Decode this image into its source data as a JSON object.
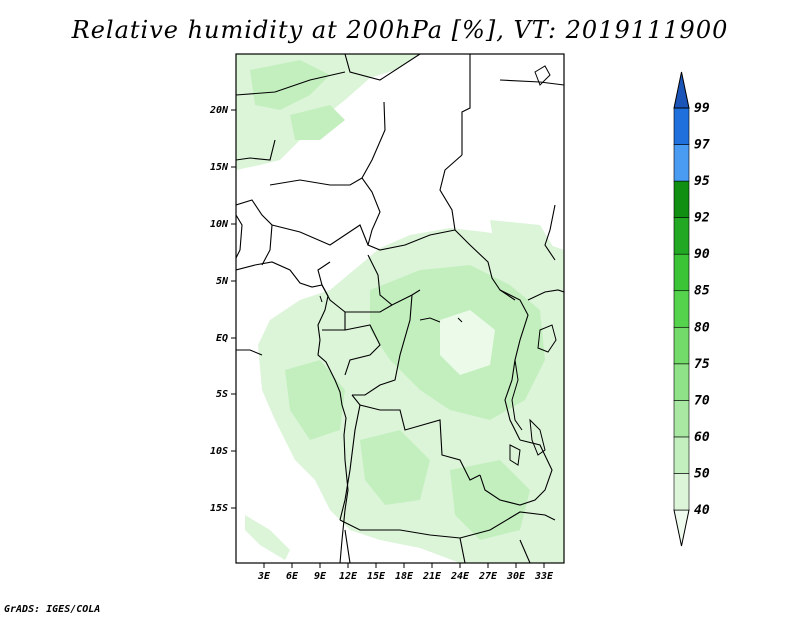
{
  "title": "Relative humidity at 200hPa [%], VT: 2019111900",
  "footer": "GrADS: IGES/COLA",
  "map": {
    "lat_labels": [
      "20N",
      "15N",
      "10N",
      "5N",
      "EQ",
      "5S",
      "10S",
      "15S"
    ],
    "lat_values": [
      20,
      15,
      10,
      5,
      0,
      -5,
      -10,
      -15
    ],
    "lon_labels": [
      "3E",
      "6E",
      "9E",
      "12E",
      "15E",
      "18E",
      "21E",
      "24E",
      "27E",
      "30E",
      "33E"
    ],
    "lon_values": [
      3,
      6,
      9,
      12,
      15,
      18,
      21,
      24,
      27,
      30,
      33
    ],
    "lon_range": [
      0,
      35
    ],
    "lat_range": [
      -20,
      25
    ]
  },
  "colorbar": {
    "labels": [
      "40",
      "50",
      "60",
      "70",
      "75",
      "80",
      "85",
      "90",
      "92",
      "95",
      "97",
      "99"
    ],
    "colors": [
      "#f0fbf0",
      "#dcf5d9",
      "#c3efbf",
      "#a8e8a2",
      "#8fe287",
      "#72db69",
      "#55d34d",
      "#3cc437",
      "#22a823",
      "#118f12",
      "#4a9bf2",
      "#1f6fdc",
      "#1b55b8"
    ]
  }
}
